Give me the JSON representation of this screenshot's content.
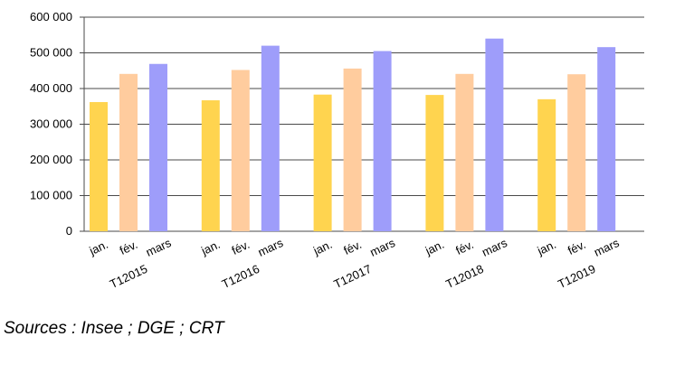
{
  "chart_data": {
    "type": "bar",
    "groups": [
      "T12015",
      "T12016",
      "T12017",
      "T12018",
      "T12019"
    ],
    "categories": [
      "jan.",
      "fév.",
      "mars"
    ],
    "series_values": {
      "jan.": [
        362000,
        367000,
        383000,
        382000,
        370000
      ],
      "fév.": [
        441000,
        452000,
        456000,
        441000,
        440000
      ],
      "mars": [
        469000,
        520000,
        505000,
        540000,
        516000
      ]
    },
    "colors": {
      "jan.": "#ffd44f",
      "fév.": "#ffcc9e",
      "mars": "#9e9dfa"
    },
    "yticks": [
      "0",
      "100 000",
      "200 000",
      "300 000",
      "400 000",
      "500 000",
      "600 000"
    ],
    "ylim": [
      0,
      600000
    ],
    "grid": true
  },
  "source_text": "Sources : Insee ; DGE ; CRT"
}
